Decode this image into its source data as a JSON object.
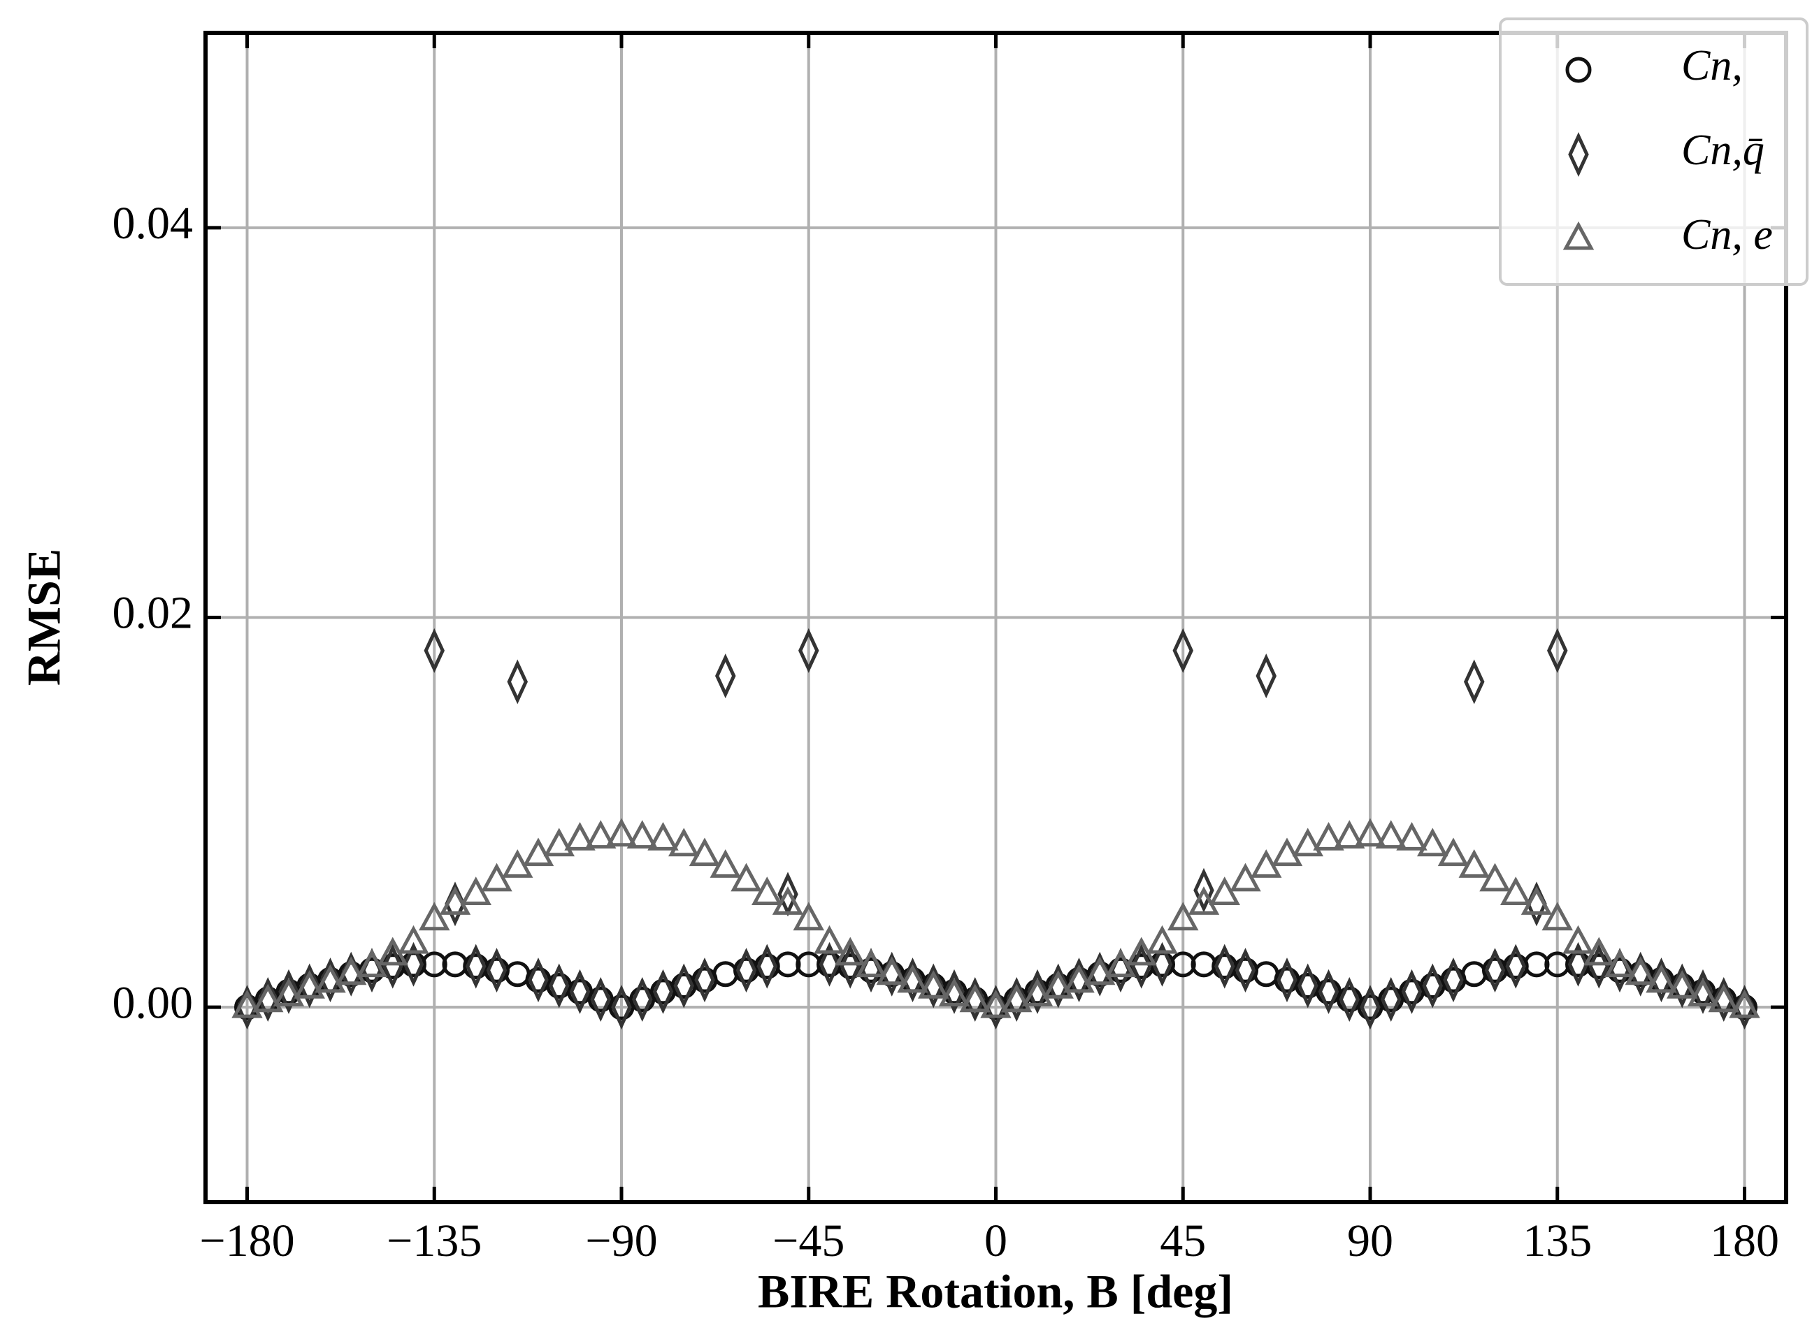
{
  "chart_data": {
    "type": "scatter",
    "xlabel": "BIRE Rotation, B [deg]",
    "ylabel": "RMSE",
    "x": [
      -180,
      -175,
      -170,
      -165,
      -160,
      -155,
      -150,
      -145,
      -140,
      -135,
      -130,
      -125,
      -120,
      -115,
      -110,
      -105,
      -100,
      -95,
      -90,
      -85,
      -80,
      -75,
      -70,
      -65,
      -60,
      -55,
      -50,
      -45,
      -40,
      -35,
      -30,
      -25,
      -20,
      -15,
      -10,
      -5,
      0,
      5,
      10,
      15,
      20,
      25,
      30,
      35,
      40,
      45,
      50,
      55,
      60,
      65,
      70,
      75,
      80,
      85,
      90,
      95,
      100,
      105,
      110,
      115,
      120,
      125,
      130,
      135,
      140,
      145,
      150,
      155,
      160,
      165,
      170,
      175,
      180
    ],
    "series": [
      {
        "name": "Cn,",
        "marker": "circle",
        "color": "#111111",
        "values": [
          0,
          0.0004,
          0.0008,
          0.0011,
          0.0014,
          0.0017,
          0.0019,
          0.0021,
          0.0022,
          0.0022,
          0.0022,
          0.0021,
          0.0019,
          0.0017,
          0.0014,
          0.0011,
          0.0008,
          0.0004,
          0,
          0.0004,
          0.0008,
          0.0011,
          0.0014,
          0.0017,
          0.0019,
          0.0021,
          0.0022,
          0.0022,
          0.0022,
          0.0021,
          0.0019,
          0.0017,
          0.0014,
          0.0011,
          0.0008,
          0.0004,
          0,
          0.0004,
          0.0008,
          0.0011,
          0.0014,
          0.0017,
          0.0019,
          0.0021,
          0.0022,
          0.0022,
          0.0022,
          0.0021,
          0.0019,
          0.0017,
          0.0014,
          0.0011,
          0.0008,
          0.0004,
          0,
          0.0004,
          0.0008,
          0.0011,
          0.0014,
          0.0017,
          0.0019,
          0.0021,
          0.0022,
          0.0022,
          0.0022,
          0.0021,
          0.0019,
          0.0017,
          0.0014,
          0.0011,
          0.0008,
          0.0004,
          0
        ]
      },
      {
        "name": "Cn,q̄",
        "marker": "diamond",
        "color": "#333333",
        "values": [
          0,
          0.0004,
          0.0008,
          0.0011,
          0.0014,
          0.0017,
          0.0019,
          0.0021,
          0.0022,
          0.0183,
          0.0053,
          0.0021,
          0.0019,
          0.0167,
          0.0014,
          0.0011,
          0.0008,
          0.0004,
          0,
          0.0004,
          0.0008,
          0.0011,
          0.0014,
          0.017,
          0.0019,
          0.0021,
          0.0058,
          0.0183,
          0.0022,
          0.0021,
          0.0019,
          0.0017,
          0.0014,
          0.0011,
          0.0008,
          0.0004,
          0,
          0.0004,
          0.0008,
          0.0011,
          0.0014,
          0.0017,
          0.0019,
          0.0021,
          0.0022,
          0.0183,
          0.006,
          0.0021,
          0.0019,
          0.017,
          0.0014,
          0.0011,
          0.0008,
          0.0004,
          0,
          0.0004,
          0.0008,
          0.0011,
          0.0014,
          0.0167,
          0.0019,
          0.0021,
          0.0053,
          0.0183,
          0.0022,
          0.0021,
          0.0019,
          0.0017,
          0.0014,
          0.0011,
          0.0008,
          0.0004,
          0
        ]
      },
      {
        "name": "Cn, e",
        "marker": "triangle",
        "color": "#666666",
        "values": [
          0,
          0.0003,
          0.0006,
          0.001,
          0.0013,
          0.0017,
          0.0021,
          0.0027,
          0.0033,
          0.0045,
          0.0053,
          0.0058,
          0.0065,
          0.0072,
          0.0078,
          0.0083,
          0.0086,
          0.0087,
          0.0088,
          0.0087,
          0.0086,
          0.0083,
          0.0078,
          0.0072,
          0.0065,
          0.0058,
          0.0053,
          0.0045,
          0.0033,
          0.0027,
          0.0021,
          0.0017,
          0.0013,
          0.001,
          0.0006,
          0.0003,
          0,
          0.0003,
          0.0006,
          0.001,
          0.0013,
          0.0017,
          0.0021,
          0.0027,
          0.0033,
          0.0045,
          0.0053,
          0.0058,
          0.0065,
          0.0072,
          0.0078,
          0.0083,
          0.0086,
          0.0087,
          0.0088,
          0.0087,
          0.0086,
          0.0083,
          0.0078,
          0.0072,
          0.0065,
          0.0058,
          0.0053,
          0.0045,
          0.0033,
          0.0027,
          0.0021,
          0.0017,
          0.0013,
          0.001,
          0.0006,
          0.0003,
          0
        ]
      }
    ],
    "xlim": [
      -190,
      190
    ],
    "ylim": [
      -0.01,
      0.05
    ],
    "xticks": [
      {
        "value": -180,
        "label": "−180"
      },
      {
        "value": -135,
        "label": "−135"
      },
      {
        "value": -90,
        "label": "−90"
      },
      {
        "value": -45,
        "label": "−45"
      },
      0,
      45,
      90,
      135,
      180
    ],
    "yticks": [
      {
        "value": 0,
        "label": "0.00"
      },
      {
        "value": 0.02,
        "label": "0.02"
      },
      {
        "value": 0.04,
        "label": "0.04"
      }
    ],
    "grid": true,
    "legend": "upper right"
  }
}
